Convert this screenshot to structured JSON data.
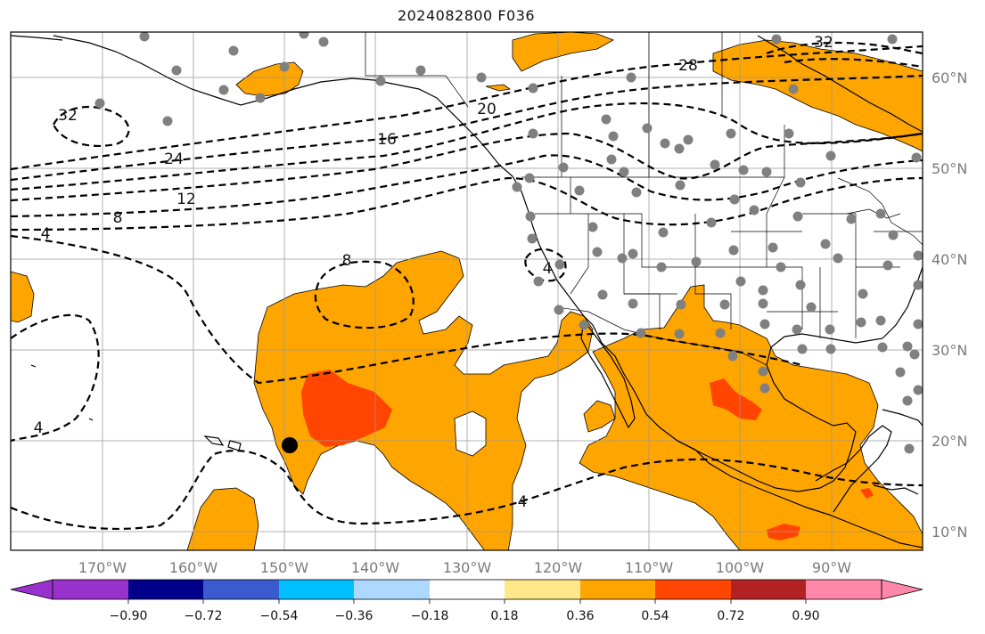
{
  "title": "2024082800 F036",
  "map": {
    "lon_labels": [
      "170°W",
      "160°W",
      "150°W",
      "140°W",
      "130°W",
      "120°W",
      "110°W",
      "100°W",
      "90°W"
    ],
    "lat_labels": [
      "60°N",
      "50°N",
      "40°N",
      "30°N",
      "20°N",
      "10°N"
    ],
    "contour_labels": [
      "32",
      "28",
      "32",
      "20",
      "24",
      "16",
      "12",
      "8",
      "4",
      "8",
      "4",
      "4",
      "4"
    ],
    "fill_colors": {
      "positive_036_054": "#ffa500",
      "positive_054_072": "#ff4500",
      "land_outline": "#000000",
      "station_dot": "#808080"
    }
  },
  "colorbar": {
    "ticks": [
      "−0.90",
      "−0.72",
      "−0.54",
      "−0.36",
      "−0.18",
      "0.18",
      "0.36",
      "0.54",
      "0.72",
      "0.90"
    ],
    "colors": [
      "#9932cc",
      "#00008b",
      "#3a5bcd",
      "#00bfff",
      "#add8ff",
      "#ffffff",
      "#ffe88a",
      "#ffa500",
      "#ff4500",
      "#b22222",
      "#ff88aa"
    ]
  }
}
